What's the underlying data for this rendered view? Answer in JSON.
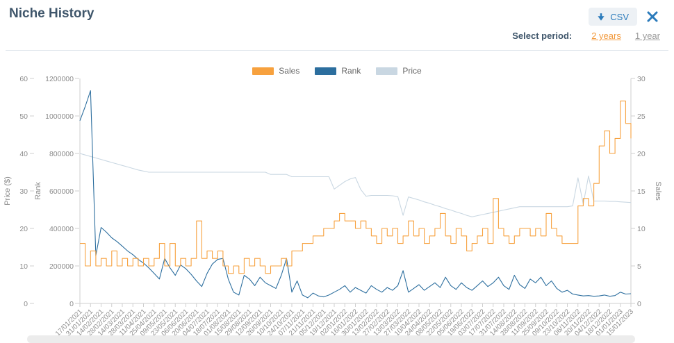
{
  "header": {
    "title": "Niche History",
    "csv_label": "CSV",
    "select_period_label": "Select period:",
    "periods": [
      {
        "label": "2 years",
        "active": true
      },
      {
        "label": "1 year",
        "active": false
      }
    ]
  },
  "theme": {
    "accent_blue": "#2B7BBB",
    "active_link_orange": "#F2993B",
    "inactive_link_gray": "#9B9B9B",
    "heading_color": "#3F566B",
    "axis_text_color": "#8B8B8B",
    "axis_line_color": "#CFCFCF",
    "legend_text_color": "#666666",
    "divider_color": "#DEE5EC",
    "scrollbar_color": "#ECECEC"
  },
  "chart_data": {
    "type": "line",
    "grid": false,
    "legend_position": "top-center",
    "x_axis": {
      "start": "17/01/2021",
      "end": "15/01/2023",
      "sampling": "weekly",
      "tick_labels": [
        "17/01/2021",
        "31/01/2021",
        "14/02/2021",
        "28/02/2021",
        "14/03/2021",
        "28/03/2021",
        "11/04/2021",
        "25/04/2021",
        "09/05/2021",
        "23/05/2021",
        "06/06/2021",
        "20/06/2021",
        "04/07/2021",
        "18/07/2021",
        "01/08/2021",
        "15/08/2021",
        "29/08/2021",
        "12/09/2021",
        "26/09/2021",
        "10/10/2021",
        "24/10/2021",
        "07/11/2021",
        "21/11/2021",
        "05/12/2021",
        "19/12/2021",
        "02/01/2022",
        "16/01/2022",
        "30/01/2022",
        "13/02/2022",
        "27/02/2022",
        "13/03/2022",
        "27/03/2022",
        "10/04/2022",
        "24/04/2022",
        "08/05/2022",
        "22/05/2022",
        "05/06/2022",
        "19/06/2022",
        "03/07/2022",
        "17/07/2022",
        "31/07/2022",
        "14/08/2022",
        "28/08/2022",
        "11/09/2022",
        "25/09/2022",
        "09/10/2022",
        "23/10/2022",
        "06/11/2022",
        "20/11/2022",
        "04/12/2022",
        "18/12/2022",
        "01/01/2023",
        "15/01/2023"
      ]
    },
    "y_axes": [
      {
        "id": "price",
        "title": "Price ($)",
        "min": 0,
        "max": 60,
        "tick_step": 10,
        "side": "left"
      },
      {
        "id": "rank",
        "title": "Rank",
        "min": 0,
        "max": 1200000,
        "tick_step": 200000,
        "side": "left"
      },
      {
        "id": "sales",
        "title": "Sales",
        "min": 0,
        "max": 30,
        "tick_step": 5,
        "side": "right"
      }
    ],
    "series": [
      {
        "name": "Sales",
        "axis": "sales",
        "color": "#F7A13E",
        "style": "step",
        "values": [
          8,
          5,
          7,
          5,
          6,
          5,
          7,
          5,
          6,
          5,
          6,
          5,
          6,
          5,
          6,
          8,
          5,
          8,
          5,
          6,
          5,
          6,
          11,
          6,
          7,
          6,
          7,
          5,
          4,
          5,
          4,
          6,
          5,
          6,
          5,
          4,
          5,
          5,
          6,
          5,
          7,
          7,
          8,
          8,
          9,
          9,
          10,
          10,
          11,
          12,
          11,
          11,
          10,
          11,
          10,
          9,
          8,
          10,
          9,
          10,
          8,
          9,
          11,
          9,
          10,
          8,
          9,
          10,
          12,
          9,
          8,
          10,
          9,
          7,
          8,
          9,
          10,
          8,
          14,
          10,
          9,
          8,
          9,
          10,
          10,
          9,
          10,
          9,
          12,
          10,
          9,
          8,
          8,
          8,
          13,
          14,
          13,
          16,
          21,
          23,
          20,
          22,
          27,
          24,
          22
        ]
      },
      {
        "name": "Rank",
        "axis": "rank",
        "color": "#2C6E9E",
        "style": "line",
        "values": [
          975000,
          1050000,
          1135000,
          255000,
          405000,
          380000,
          350000,
          330000,
          305000,
          280000,
          260000,
          235000,
          215000,
          190000,
          160000,
          130000,
          240000,
          190000,
          150000,
          205000,
          185000,
          155000,
          120000,
          90000,
          160000,
          210000,
          235000,
          240000,
          130000,
          60000,
          45000,
          150000,
          130000,
          95000,
          140000,
          110000,
          95000,
          80000,
          150000,
          240000,
          60000,
          120000,
          45000,
          30000,
          55000,
          40000,
          35000,
          45000,
          60000,
          75000,
          95000,
          60000,
          85000,
          70000,
          55000,
          95000,
          75000,
          60000,
          85000,
          70000,
          95000,
          175000,
          60000,
          80000,
          100000,
          70000,
          90000,
          110000,
          85000,
          140000,
          95000,
          75000,
          110000,
          85000,
          70000,
          95000,
          120000,
          90000,
          110000,
          140000,
          95000,
          75000,
          150000,
          100000,
          80000,
          130000,
          110000,
          140000,
          95000,
          120000,
          80000,
          60000,
          70000,
          50000,
          45000,
          40000,
          42000,
          38000,
          40000,
          45000,
          38000,
          42000,
          60000,
          50000,
          52000
        ]
      },
      {
        "name": "Price",
        "axis": "price",
        "color": "#C9D7E2",
        "style": "line",
        "values": [
          40,
          39.6,
          39.2,
          38.8,
          38.4,
          38,
          37.6,
          37.2,
          36.8,
          36.4,
          36,
          35.6,
          35.3,
          35,
          35,
          35,
          35,
          35,
          35,
          35,
          35,
          35,
          35,
          35,
          35,
          35,
          35,
          35,
          35,
          35,
          35,
          35,
          35,
          35,
          35,
          35,
          34.4,
          34.4,
          34.4,
          34.4,
          33.8,
          33.8,
          33.8,
          33.8,
          33.8,
          33.8,
          33.8,
          33.8,
          30.5,
          31.5,
          32.5,
          33.2,
          33.6,
          30.4,
          28.6,
          28.8,
          28.8,
          28.8,
          28.8,
          28.7,
          28.5,
          23.5,
          28.4,
          28,
          27.6,
          27.1,
          26.7,
          26.2,
          25.8,
          25.3,
          24.9,
          24.4,
          24,
          23.5,
          23.1,
          23.4,
          23.7,
          24,
          24.3,
          24.6,
          24.9,
          25.2,
          25.5,
          25.8,
          25.8,
          25.8,
          25.8,
          25.8,
          25.8,
          25.8,
          25.8,
          25.8,
          25.8,
          26,
          33.5,
          26.5,
          34,
          27.3,
          27.3,
          27.3,
          27.2,
          27.2,
          27.1,
          27,
          26.9
        ]
      }
    ]
  }
}
